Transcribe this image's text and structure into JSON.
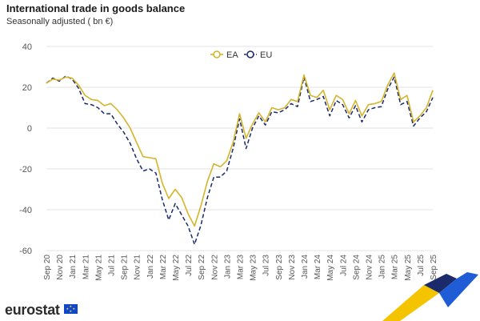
{
  "header": {
    "title": "International trade in goods balance",
    "subtitle": "Seasonally adjusted ( bn €)"
  },
  "brand": {
    "name": "eurostat",
    "logo_icon": "eu-flag-icon"
  },
  "colors": {
    "ea": "#d4b42a",
    "eu": "#1b2a6b",
    "grid": "#e3e3e3",
    "axis_text": "#555555"
  },
  "chart_data": {
    "type": "line",
    "title": "International trade in goods balance",
    "subtitle": "Seasonally adjusted ( bn €)",
    "xlabel": "",
    "ylabel": "",
    "ylim": [
      -60,
      40
    ],
    "yticks": [
      40,
      20,
      0,
      -20,
      -40,
      -60
    ],
    "grid": true,
    "legend_position": "top-center",
    "x_tick_labels": [
      "Sep 20",
      "Nov 20",
      "Jan 21",
      "Mar 21",
      "May 21",
      "Jul 21",
      "Sep 21",
      "Nov 21",
      "Jan 22",
      "Mar 22",
      "May 22",
      "Jul 22",
      "Sep 22",
      "Nov 22",
      "Jan 23",
      "Mar 23",
      "May 23",
      "Jul 23",
      "Sep 23",
      "Nov 23",
      "Jan 24",
      "Mar 24",
      "May 24",
      "Jul 24",
      "Sep 24",
      "Nov 24",
      "Jan 25",
      "Mar 25",
      "May 25",
      "Jul 25",
      "Sep 25"
    ],
    "x": [
      "Sep 20",
      "Oct 20",
      "Nov 20",
      "Dec 20",
      "Jan 21",
      "Feb 21",
      "Mar 21",
      "Apr 21",
      "May 21",
      "Jun 21",
      "Jul 21",
      "Aug 21",
      "Sep 21",
      "Oct 21",
      "Nov 21",
      "Dec 21",
      "Jan 22",
      "Feb 22",
      "Mar 22",
      "Apr 22",
      "May 22",
      "Jun 22",
      "Jul 22",
      "Aug 22",
      "Sep 22",
      "Oct 22",
      "Nov 22",
      "Dec 22",
      "Jan 23",
      "Feb 23",
      "Mar 23",
      "Apr 23",
      "May 23",
      "Jun 23",
      "Jul 23",
      "Aug 23",
      "Sep 23",
      "Oct 23",
      "Nov 23",
      "Dec 23",
      "Jan 24",
      "Feb 24",
      "Mar 24",
      "Apr 24",
      "May 24",
      "Jun 24",
      "Jul 24",
      "Aug 24",
      "Sep 24",
      "Oct 24",
      "Nov 24",
      "Dec 24",
      "Jan 25",
      "Feb 25",
      "Mar 25",
      "Apr 25",
      "May 25",
      "Jun 25",
      "Jul 25",
      "Aug 25",
      "Sep 25"
    ],
    "series": [
      {
        "name": "EA",
        "style": "solid",
        "values": [
          22,
          24,
          23.5,
          25,
          24.5,
          21,
          16,
          14,
          13.5,
          11,
          12,
          9,
          5,
          0,
          -7,
          -14,
          -14.5,
          -15,
          -27,
          -34.5,
          -30,
          -34,
          -42,
          -48,
          -38,
          -26,
          -17.5,
          -19,
          -16,
          -7,
          7,
          -5,
          2,
          7.5,
          3,
          10,
          9,
          10,
          14,
          13,
          26,
          16,
          15,
          18.5,
          9,
          16,
          14,
          7,
          13.5,
          6,
          11.5,
          12,
          13,
          21,
          27,
          14,
          16,
          3,
          6,
          10,
          18.5
        ]
      },
      {
        "name": "EU",
        "style": "dashed",
        "values": [
          22,
          24.5,
          23,
          25.5,
          24,
          19.5,
          12,
          11.5,
          10,
          7,
          7,
          2,
          -2,
          -7.5,
          -15,
          -21,
          -20,
          -22,
          -35,
          -45,
          -37,
          -42.5,
          -48,
          -57,
          -47.5,
          -34,
          -24,
          -24,
          -21,
          -10,
          4.5,
          -10,
          0,
          6,
          1.5,
          8,
          7.5,
          9,
          12,
          10.5,
          25,
          13,
          14,
          15.5,
          6,
          13.5,
          11.5,
          5,
          11,
          3,
          9,
          10,
          10.5,
          19,
          25,
          11.5,
          13,
          1,
          5,
          8,
          15
        ]
      }
    ]
  }
}
